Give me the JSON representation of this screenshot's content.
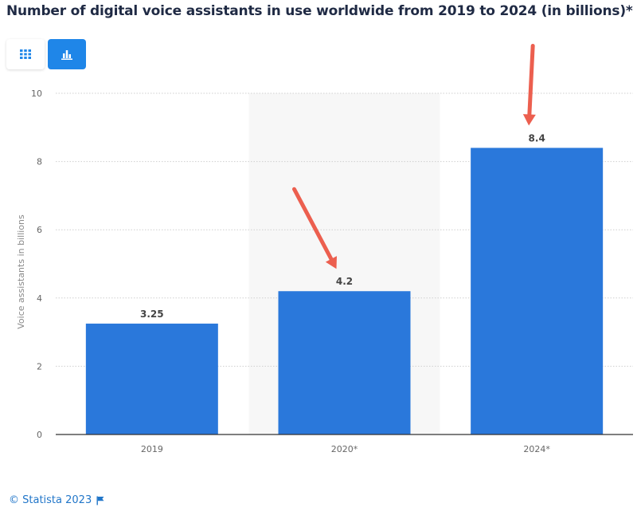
{
  "header": {
    "title": "Number of digital voice assistants in use worldwide from 2019 to 2024 (in billions)*"
  },
  "toolbar": {
    "table_icon": "grid-icon",
    "chart_icon": "bar-chart-icon",
    "active_view": "chart"
  },
  "chart_data": {
    "type": "bar",
    "categories": [
      "2019",
      "2020*",
      "2024*"
    ],
    "values": [
      3.25,
      4.2,
      8.4
    ],
    "value_labels": [
      "3.25",
      "4.2",
      "8.4"
    ],
    "title": "Number of digital voice assistants in use worldwide from 2019 to 2024 (in billions)*",
    "xlabel": "",
    "ylabel": "Voice assistants in billions",
    "ylim": [
      0,
      10
    ],
    "yticks": [
      "0",
      "2",
      "4",
      "6",
      "8",
      "10"
    ],
    "grid": true,
    "bar_color": "#2a78db",
    "highlight_band_category": "2020*",
    "highlight_band_color": "#f7f7f7",
    "annotations": [
      {
        "type": "arrow",
        "target": "2020*",
        "color": "#ec5f4f"
      },
      {
        "type": "arrow",
        "target": "2024*",
        "color": "#ec5f4f"
      }
    ]
  },
  "footer": {
    "copyright": "© Statista 2023",
    "flag_icon": "flag-icon"
  }
}
